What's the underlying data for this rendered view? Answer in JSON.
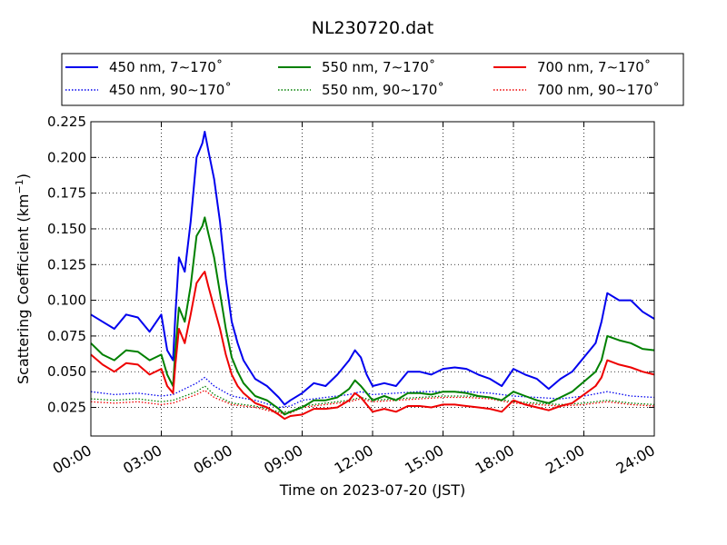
{
  "chart_data": {
    "type": "line",
    "title": "NL230720.dat",
    "xlabel": "Time on 2023-07-20 (JST)",
    "ylabel_main": "Scattering Coefficient (km",
    "ylabel_sup": "−1",
    "ylabel_close": ")",
    "xlim": [
      0,
      24
    ],
    "ylim": [
      0.005,
      0.225
    ],
    "xticks": [
      {
        "value": 0,
        "label": "00:00"
      },
      {
        "value": 3,
        "label": "03:00"
      },
      {
        "value": 6,
        "label": "06:00"
      },
      {
        "value": 9,
        "label": "09:00"
      },
      {
        "value": 12,
        "label": "12:00"
      },
      {
        "value": 15,
        "label": "15:00"
      },
      {
        "value": 18,
        "label": "18:00"
      },
      {
        "value": 21,
        "label": "21:00"
      },
      {
        "value": 24,
        "label": "24:00"
      }
    ],
    "yticks": [
      {
        "value": 0.025,
        "label": "0.025"
      },
      {
        "value": 0.05,
        "label": "0.050"
      },
      {
        "value": 0.075,
        "label": "0.075"
      },
      {
        "value": 0.1,
        "label": "0.100"
      },
      {
        "value": 0.125,
        "label": "0.125"
      },
      {
        "value": 0.15,
        "label": "0.150"
      },
      {
        "value": 0.175,
        "label": "0.175"
      },
      {
        "value": 0.2,
        "label": "0.200"
      },
      {
        "value": 0.225,
        "label": "0.225"
      }
    ],
    "grid": true,
    "legend_position": "top",
    "series": [
      {
        "name": "450 nm, 7∼170˚",
        "color": "#0000ee",
        "style": "solid",
        "x": [
          0,
          0.5,
          1,
          1.5,
          2,
          2.5,
          3,
          3.25,
          3.5,
          3.6,
          3.75,
          4,
          4.25,
          4.5,
          4.75,
          4.85,
          5,
          5.25,
          5.5,
          5.75,
          6,
          6.25,
          6.5,
          7,
          7.5,
          8,
          8.25,
          8.5,
          9,
          9.5,
          10,
          10.5,
          11,
          11.25,
          11.5,
          11.75,
          12,
          12.5,
          13,
          13.5,
          14,
          14.5,
          15,
          15.5,
          16,
          16.5,
          17,
          17.5,
          18,
          18.5,
          19,
          19.5,
          20,
          20.5,
          21,
          21.5,
          21.75,
          22,
          22.5,
          23,
          23.5,
          24
        ],
        "y": [
          0.09,
          0.085,
          0.08,
          0.09,
          0.088,
          0.078,
          0.09,
          0.065,
          0.058,
          0.09,
          0.13,
          0.12,
          0.155,
          0.2,
          0.21,
          0.218,
          0.205,
          0.185,
          0.155,
          0.115,
          0.085,
          0.07,
          0.058,
          0.045,
          0.04,
          0.032,
          0.027,
          0.03,
          0.035,
          0.042,
          0.04,
          0.048,
          0.058,
          0.065,
          0.06,
          0.048,
          0.04,
          0.042,
          0.04,
          0.05,
          0.05,
          0.048,
          0.052,
          0.053,
          0.052,
          0.048,
          0.045,
          0.04,
          0.052,
          0.048,
          0.045,
          0.038,
          0.045,
          0.05,
          0.06,
          0.07,
          0.085,
          0.105,
          0.1,
          0.1,
          0.092,
          0.087
        ]
      },
      {
        "name": "550 nm, 7∼170˚",
        "color": "#008000",
        "style": "solid",
        "x": [
          0,
          0.5,
          1,
          1.5,
          2,
          2.5,
          3,
          3.25,
          3.5,
          3.6,
          3.75,
          4,
          4.25,
          4.5,
          4.75,
          4.85,
          5,
          5.25,
          5.5,
          5.75,
          6,
          6.25,
          6.5,
          7,
          7.5,
          8,
          8.25,
          8.5,
          9,
          9.5,
          10,
          10.5,
          11,
          11.25,
          11.5,
          11.75,
          12,
          12.5,
          13,
          13.5,
          14,
          14.5,
          15,
          15.5,
          16,
          16.5,
          17,
          17.5,
          18,
          18.5,
          19,
          19.5,
          20,
          20.5,
          21,
          21.5,
          21.75,
          22,
          22.5,
          23,
          23.5,
          24
        ],
        "y": [
          0.07,
          0.062,
          0.058,
          0.065,
          0.064,
          0.058,
          0.062,
          0.048,
          0.04,
          0.065,
          0.095,
          0.085,
          0.11,
          0.145,
          0.152,
          0.158,
          0.147,
          0.13,
          0.105,
          0.08,
          0.06,
          0.05,
          0.042,
          0.033,
          0.03,
          0.024,
          0.02,
          0.022,
          0.025,
          0.03,
          0.03,
          0.032,
          0.038,
          0.044,
          0.04,
          0.035,
          0.03,
          0.033,
          0.03,
          0.035,
          0.035,
          0.034,
          0.036,
          0.036,
          0.035,
          0.033,
          0.032,
          0.03,
          0.036,
          0.033,
          0.03,
          0.028,
          0.032,
          0.036,
          0.043,
          0.05,
          0.058,
          0.075,
          0.072,
          0.07,
          0.066,
          0.065
        ]
      },
      {
        "name": "700 nm, 7∼170˚",
        "color": "#ee0000",
        "style": "solid",
        "x": [
          0,
          0.5,
          1,
          1.5,
          2,
          2.5,
          3,
          3.25,
          3.5,
          3.6,
          3.75,
          4,
          4.25,
          4.5,
          4.75,
          4.85,
          5,
          5.25,
          5.5,
          5.75,
          6,
          6.25,
          6.5,
          7,
          7.5,
          8,
          8.25,
          8.5,
          9,
          9.5,
          10,
          10.5,
          11,
          11.25,
          11.5,
          11.75,
          12,
          12.5,
          13,
          13.5,
          14,
          14.5,
          15,
          15.5,
          16,
          16.5,
          17,
          17.5,
          18,
          18.5,
          19,
          19.5,
          20,
          20.5,
          21,
          21.5,
          21.75,
          22,
          22.5,
          23,
          23.5,
          24
        ],
        "y": [
          0.062,
          0.055,
          0.05,
          0.056,
          0.055,
          0.048,
          0.052,
          0.04,
          0.035,
          0.055,
          0.08,
          0.07,
          0.09,
          0.112,
          0.118,
          0.12,
          0.11,
          0.095,
          0.08,
          0.062,
          0.048,
          0.04,
          0.035,
          0.028,
          0.025,
          0.02,
          0.017,
          0.019,
          0.02,
          0.024,
          0.024,
          0.025,
          0.03,
          0.035,
          0.032,
          0.027,
          0.022,
          0.024,
          0.022,
          0.026,
          0.026,
          0.025,
          0.027,
          0.027,
          0.026,
          0.025,
          0.024,
          0.022,
          0.03,
          0.027,
          0.025,
          0.023,
          0.026,
          0.028,
          0.034,
          0.04,
          0.046,
          0.058,
          0.055,
          0.053,
          0.05,
          0.048
        ]
      },
      {
        "name": "450 nm, 90∼170˚",
        "color": "#0000ee",
        "style": "dotted",
        "x": [
          0,
          1,
          2,
          3,
          3.5,
          4,
          4.5,
          4.85,
          5.25,
          6,
          7,
          8,
          8.5,
          9,
          10,
          11,
          11.5,
          12,
          13,
          14,
          15,
          16,
          17,
          18,
          19,
          20,
          21,
          22,
          23,
          24
        ],
        "y": [
          0.036,
          0.034,
          0.035,
          0.033,
          0.034,
          0.038,
          0.042,
          0.046,
          0.04,
          0.033,
          0.03,
          0.025,
          0.026,
          0.03,
          0.032,
          0.034,
          0.036,
          0.034,
          0.035,
          0.036,
          0.036,
          0.036,
          0.035,
          0.033,
          0.032,
          0.031,
          0.033,
          0.036,
          0.033,
          0.032
        ]
      },
      {
        "name": "550 nm, 90∼170˚",
        "color": "#008000",
        "style": "dotted",
        "x": [
          0,
          1,
          2,
          3,
          3.5,
          4,
          4.5,
          4.85,
          5.25,
          6,
          7,
          8,
          8.5,
          9,
          10,
          11,
          11.5,
          12,
          13,
          14,
          15,
          16,
          17,
          18,
          19,
          20,
          21,
          22,
          23,
          24
        ],
        "y": [
          0.031,
          0.03,
          0.031,
          0.029,
          0.03,
          0.033,
          0.036,
          0.04,
          0.034,
          0.028,
          0.026,
          0.022,
          0.022,
          0.026,
          0.028,
          0.03,
          0.032,
          0.03,
          0.031,
          0.032,
          0.033,
          0.033,
          0.032,
          0.029,
          0.028,
          0.027,
          0.028,
          0.03,
          0.028,
          0.027
        ]
      },
      {
        "name": "700 nm, 90∼170˚",
        "color": "#ee0000",
        "style": "dotted",
        "x": [
          0,
          1,
          2,
          3,
          3.5,
          4,
          4.5,
          4.85,
          5.25,
          6,
          7,
          8,
          8.5,
          9,
          10,
          11,
          11.5,
          12,
          13,
          14,
          15,
          16,
          17,
          18,
          19,
          20,
          21,
          22,
          23,
          24
        ],
        "y": [
          0.029,
          0.028,
          0.029,
          0.027,
          0.028,
          0.031,
          0.034,
          0.037,
          0.032,
          0.027,
          0.025,
          0.021,
          0.021,
          0.025,
          0.027,
          0.029,
          0.031,
          0.029,
          0.03,
          0.031,
          0.032,
          0.032,
          0.031,
          0.028,
          0.027,
          0.026,
          0.027,
          0.029,
          0.027,
          0.026
        ]
      }
    ]
  }
}
